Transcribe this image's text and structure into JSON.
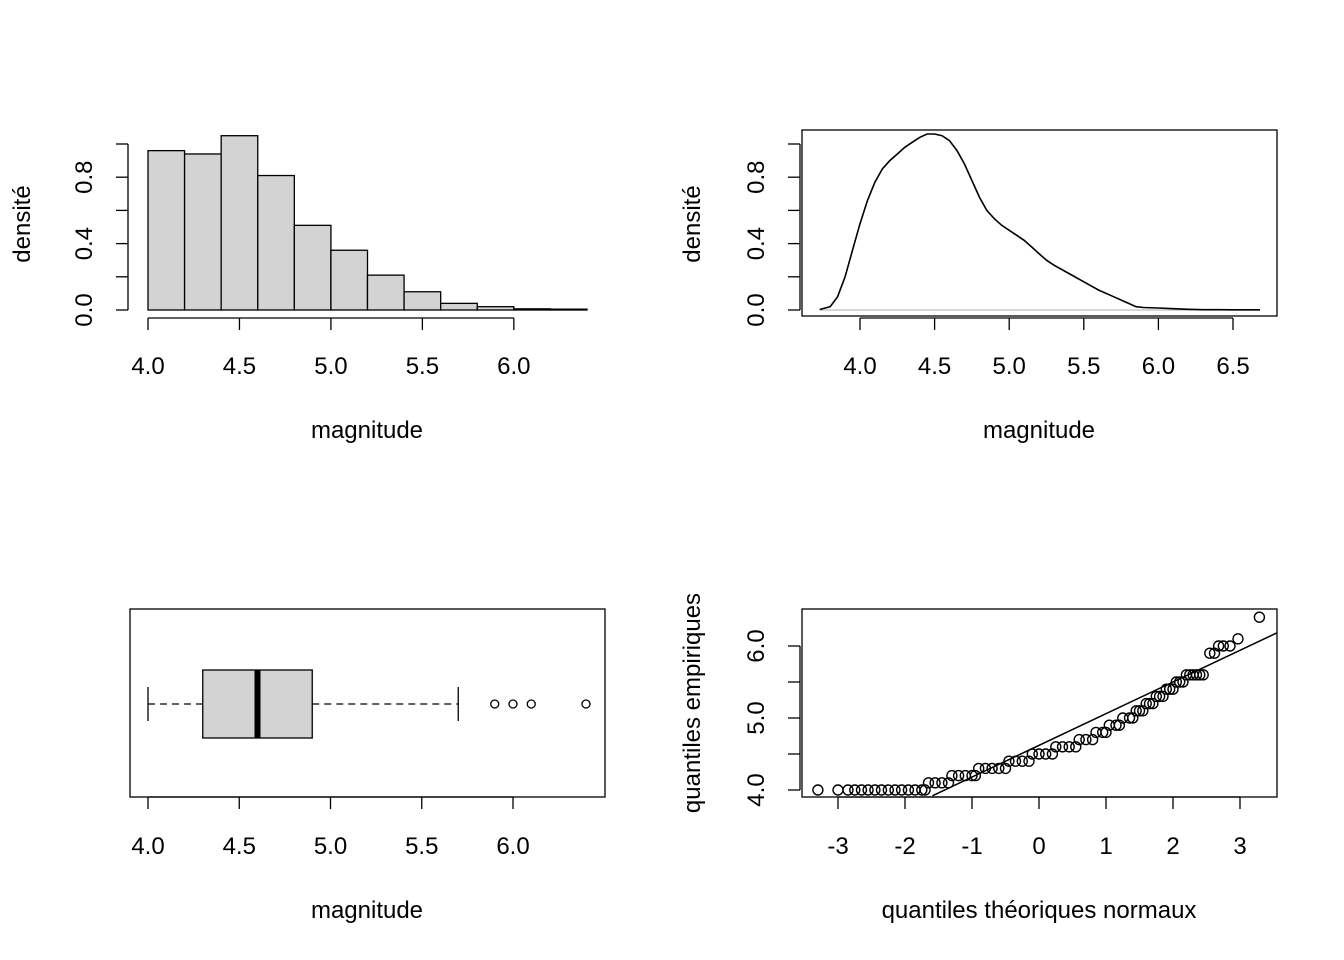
{
  "colors": {
    "fill": "#d3d3d3",
    "line": "#000000",
    "baseline": "#bebebe"
  },
  "chart_data": [
    {
      "type": "bar",
      "subtype": "histogram",
      "xlabel": "magnitude",
      "ylabel": "densité",
      "bin_edges": [
        4.0,
        4.2,
        4.4,
        4.6,
        4.8,
        5.0,
        5.2,
        5.4,
        5.6,
        5.8,
        6.0,
        6.2,
        6.4
      ],
      "values": [
        0.96,
        0.94,
        1.05,
        0.81,
        0.51,
        0.36,
        0.21,
        0.11,
        0.04,
        0.02,
        0.007,
        0.005
      ],
      "xlim": [
        4.0,
        6.4
      ],
      "ylim": [
        0,
        1.0
      ],
      "x_ticks": [
        4.0,
        4.5,
        5.0,
        5.5,
        6.0
      ],
      "x_tick_labels": [
        "4.0",
        "4.5",
        "5.0",
        "5.5",
        "6.0"
      ],
      "y_ticks": [
        0.0,
        0.2,
        0.4,
        0.6,
        0.8,
        1.0
      ],
      "y_tick_labels": [
        "0.0",
        "",
        "0.4",
        "",
        "0.8",
        ""
      ],
      "grid": false
    },
    {
      "type": "line",
      "subtype": "density",
      "xlabel": "magnitude",
      "ylabel": "densité",
      "x": [
        3.73,
        3.8,
        3.85,
        3.9,
        3.95,
        4.0,
        4.05,
        4.1,
        4.15,
        4.2,
        4.25,
        4.3,
        4.35,
        4.4,
        4.45,
        4.5,
        4.55,
        4.6,
        4.65,
        4.7,
        4.75,
        4.8,
        4.85,
        4.9,
        4.95,
        5.0,
        5.05,
        5.1,
        5.15,
        5.2,
        5.25,
        5.3,
        5.4,
        5.5,
        5.6,
        5.7,
        5.8,
        5.85,
        5.9,
        6.0,
        6.1,
        6.2,
        6.3,
        6.4,
        6.5,
        6.68
      ],
      "y": [
        0.003,
        0.02,
        0.08,
        0.2,
        0.36,
        0.52,
        0.66,
        0.77,
        0.85,
        0.9,
        0.94,
        0.98,
        1.01,
        1.04,
        1.06,
        1.06,
        1.05,
        1.02,
        0.96,
        0.88,
        0.78,
        0.68,
        0.6,
        0.55,
        0.51,
        0.48,
        0.45,
        0.42,
        0.38,
        0.34,
        0.3,
        0.27,
        0.22,
        0.17,
        0.12,
        0.08,
        0.04,
        0.02,
        0.015,
        0.012,
        0.008,
        0.004,
        0.002,
        0.002,
        0.001,
        0.001
      ],
      "xlim": [
        3.6,
        6.8
      ],
      "ylim": [
        -0.04,
        1.1
      ],
      "x_ticks": [
        4.0,
        4.5,
        5.0,
        5.5,
        6.0,
        6.5
      ],
      "x_tick_labels": [
        "4.0",
        "4.5",
        "5.0",
        "5.5",
        "6.0",
        "6.5"
      ],
      "y_ticks": [
        0.0,
        0.2,
        0.4,
        0.6,
        0.8,
        1.0
      ],
      "y_tick_labels": [
        "0.0",
        "",
        "0.4",
        "",
        "0.8",
        ""
      ],
      "grid": false
    },
    {
      "type": "box",
      "orientation": "horizontal",
      "xlabel": "magnitude",
      "whisker_low": 4.0,
      "q1": 4.3,
      "median": 4.6,
      "q3": 4.9,
      "whisker_high": 5.7,
      "outliers": [
        5.9,
        6.0,
        6.1,
        6.4
      ],
      "xlim": [
        3.9,
        6.5
      ],
      "x_ticks": [
        4.0,
        4.5,
        5.0,
        5.5,
        6.0
      ],
      "x_tick_labels": [
        "4.0",
        "4.5",
        "5.0",
        "5.5",
        "6.0"
      ],
      "grid": false
    },
    {
      "type": "scatter",
      "subtype": "qq",
      "xlabel": "quantiles théoriques normaux",
      "ylabel": "quantiles empiriques",
      "reference_line": {
        "intercept": 4.62,
        "slope": 0.44
      },
      "xlim": [
        -3.55,
        3.55
      ],
      "ylim": [
        3.92,
        6.48
      ],
      "x_ticks": [
        -3,
        -2,
        -1,
        0,
        1,
        2,
        3
      ],
      "x_tick_labels": [
        "-3",
        "-2",
        "-1",
        "0",
        "1",
        "2",
        "3"
      ],
      "y_ticks": [
        4.0,
        4.5,
        5.0,
        5.5,
        6.0
      ],
      "y_tick_labels": [
        "4.0",
        "",
        "5.0",
        "",
        "6.0"
      ],
      "levels": [
        {
          "y": 4.0,
          "x": [
            -3.3,
            -3.0,
            -2.85,
            -2.75,
            -2.65,
            -2.55,
            -2.45,
            -2.35,
            -2.25,
            -2.15,
            -2.05,
            -1.95,
            -1.85,
            -1.75,
            -1.7
          ]
        },
        {
          "y": 4.1,
          "x": [
            -1.65,
            -1.55,
            -1.45,
            -1.35
          ]
        },
        {
          "y": 4.2,
          "x": [
            -1.3,
            -1.2,
            -1.1,
            -1.0,
            -0.95
          ]
        },
        {
          "y": 4.3,
          "x": [
            -0.9,
            -0.8,
            -0.7,
            -0.6,
            -0.5
          ]
        },
        {
          "y": 4.4,
          "x": [
            -0.45,
            -0.35,
            -0.25,
            -0.15
          ]
        },
        {
          "y": 4.5,
          "x": [
            -0.1,
            0.0,
            0.1,
            0.2
          ]
        },
        {
          "y": 4.6,
          "x": [
            0.25,
            0.35,
            0.45,
            0.55
          ]
        },
        {
          "y": 4.7,
          "x": [
            0.6,
            0.7,
            0.8
          ]
        },
        {
          "y": 4.8,
          "x": [
            0.85,
            0.95,
            1.0
          ]
        },
        {
          "y": 4.9,
          "x": [
            1.05,
            1.15,
            1.2
          ]
        },
        {
          "y": 5.0,
          "x": [
            1.25,
            1.35,
            1.4
          ]
        },
        {
          "y": 5.1,
          "x": [
            1.45,
            1.5,
            1.55
          ]
        },
        {
          "y": 5.2,
          "x": [
            1.6,
            1.65,
            1.7
          ]
        },
        {
          "y": 5.3,
          "x": [
            1.75,
            1.8,
            1.85
          ]
        },
        {
          "y": 5.4,
          "x": [
            1.9,
            1.95,
            2.0
          ]
        },
        {
          "y": 5.5,
          "x": [
            2.05,
            2.1,
            2.15
          ]
        },
        {
          "y": 5.6,
          "x": [
            2.2,
            2.25,
            2.3,
            2.35,
            2.4,
            2.45
          ]
        },
        {
          "y": 5.9,
          "x": [
            2.55,
            2.62
          ]
        },
        {
          "y": 6.0,
          "x": [
            2.68,
            2.75,
            2.85
          ]
        },
        {
          "y": 6.1,
          "x": [
            2.97
          ]
        },
        {
          "y": 6.4,
          "x": [
            3.29
          ]
        }
      ],
      "grid": false
    }
  ]
}
